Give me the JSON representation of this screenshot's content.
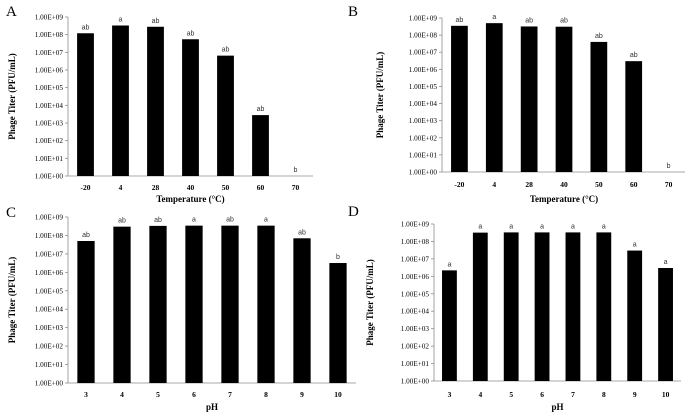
{
  "colors": {
    "bar": "#000000",
    "axis": "#8c8c8c",
    "text": "#000000"
  },
  "chart_data": [
    {
      "panel": "A",
      "type": "bar",
      "title": "",
      "xlabel": "Temperature (°C)",
      "ylabel": "Phage Titer (PFU/mL)",
      "yscale": "log",
      "ylim": [
        1,
        1000000000
      ],
      "yticks": [
        "1.00E+00",
        "1.00E+01",
        "1.00E+02",
        "1.00E+03",
        "1.00E+04",
        "1.00E+05",
        "1.00E+06",
        "1.00E+07",
        "1.00E+08",
        "1.00E+09"
      ],
      "categories": [
        "-20",
        "4",
        "28",
        "40",
        "50",
        "60",
        "70"
      ],
      "values": [
        120000000,
        330000000,
        280000000,
        55000000,
        6500000,
        2800,
        1
      ],
      "labels": [
        "ab",
        "a",
        "ab",
        "ab",
        "ab",
        "ab",
        "b"
      ]
    },
    {
      "panel": "B",
      "type": "bar",
      "title": "",
      "xlabel": "Temperature (°C)",
      "ylabel": "Phage Titer (PFU/mL)",
      "yscale": "log",
      "ylim": [
        1,
        1000000000
      ],
      "yticks": [
        "1.00E+00",
        "1.00E+01",
        "1.00E+02",
        "1.00E+03",
        "1.00E+04",
        "1.00E+05",
        "1.00E+06",
        "1.00E+07",
        "1.00E+08",
        "1.00E+09"
      ],
      "categories": [
        "-20",
        "4",
        "28",
        "40",
        "50",
        "60",
        "70"
      ],
      "values": [
        350000000,
        500000000,
        320000000,
        310000000,
        40000000,
        3000000,
        1
      ],
      "labels": [
        "ab",
        "a",
        "ab",
        "ab",
        "ab",
        "ab",
        "b"
      ]
    },
    {
      "panel": "C",
      "type": "bar",
      "title": "",
      "xlabel": "pH",
      "ylabel": "Phage Titer (PFU/mL)",
      "yscale": "log",
      "ylim": [
        1,
        1000000000
      ],
      "yticks": [
        "1.00E+00",
        "1.00E+01",
        "1.00E+02",
        "1.00E+03",
        "1.00E+04",
        "1.00E+05",
        "1.00E+06",
        "1.00E+07",
        "1.00E+08",
        "1.00E+09"
      ],
      "categories": [
        "3",
        "4",
        "5",
        "6",
        "7",
        "8",
        "9",
        "10"
      ],
      "values": [
        50000000,
        300000000,
        330000000,
        340000000,
        340000000,
        340000000,
        70000000,
        3200000
      ],
      "labels": [
        "ab",
        "ab",
        "ab",
        "a",
        "ab",
        "a",
        "ab",
        "b"
      ]
    },
    {
      "panel": "D",
      "type": "bar",
      "title": "",
      "xlabel": "pH",
      "ylabel": "Phage Titer (PFU/mL)",
      "yscale": "log",
      "ylim": [
        1,
        1000000000
      ],
      "yticks": [
        "1.00E+00",
        "1.00E+01",
        "1.00E+02",
        "1.00E+03",
        "1.00E+04",
        "1.00E+05",
        "1.00E+06",
        "1.00E+07",
        "1.00E+08",
        "1.00E+09"
      ],
      "categories": [
        "3",
        "4",
        "5",
        "6",
        "7",
        "8",
        "9",
        "10"
      ],
      "values": [
        2200000,
        320000000,
        330000000,
        330000000,
        330000000,
        330000000,
        30000000,
        3000000
      ],
      "labels": [
        "a",
        "a",
        "a",
        "a",
        "a",
        "a",
        "a",
        "a"
      ]
    }
  ]
}
